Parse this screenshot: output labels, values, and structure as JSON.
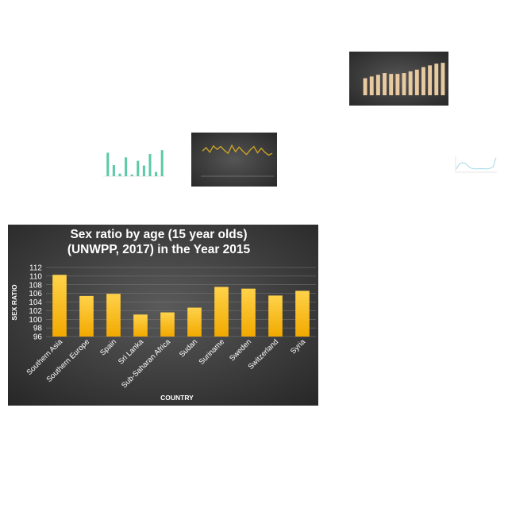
{
  "colors": {
    "dark_bg_center": "#555555",
    "dark_bg_edge": "#262626",
    "bar_gold_top": "#FFD24A",
    "bar_gold_bottom": "#F2A900",
    "tan_bar": "#E8C9A0",
    "teal_bar": "#5CC9A7",
    "olive_line": "#C9A227",
    "light_line": "#9ED8E6"
  },
  "chart_data": [
    {
      "type": "bar",
      "title": "Sex ratio by age (15 year olds) (UNWPP, 2017) in the Year 2015",
      "title_lines": [
        "Sex ratio by age (15 year olds)",
        "(UNWPP, 2017) in the Year 2015"
      ],
      "xlabel": "COUNTRY",
      "ylabel": "SEX RATIO",
      "categories": [
        "Southern Asia",
        "Southern Europe",
        "Spain",
        "Sri Lanka",
        "Sub-Saharan Africa",
        "Sudan",
        "Suriname",
        "Sweden",
        "Switzerland",
        "Syria"
      ],
      "values": [
        110.3,
        105.4,
        105.9,
        101.1,
        101.6,
        102.7,
        107.5,
        107.1,
        105.5,
        106.6
      ],
      "ylim": [
        96,
        112
      ],
      "yticks": [
        96,
        98,
        100,
        102,
        104,
        106,
        108,
        110,
        112
      ],
      "grid": true
    },
    {
      "type": "bar",
      "values": [
        2.0,
        2.2,
        2.4,
        2.6,
        2.5,
        2.5,
        2.6,
        2.8,
        3.0,
        3.3,
        3.5,
        3.7,
        3.8
      ]
    },
    {
      "type": "bar",
      "values": [
        5.5,
        2.6,
        0.6,
        4.4,
        0.4,
        3.6,
        2.5,
        5.2,
        1.0,
        6.1
      ]
    },
    {
      "type": "line",
      "values": [
        6.2,
        6.8,
        6.0,
        7.1,
        6.5,
        7.0,
        6.3,
        5.8,
        7.2,
        6.1,
        6.9,
        6.2,
        5.6,
        6.4,
        7.0,
        5.9,
        6.7,
        6.0,
        5.5,
        5.8
      ]
    },
    {
      "type": "line",
      "values": [
        1.0,
        3.0,
        3.5,
        3.2,
        2.0,
        1.2,
        1.0,
        1.0,
        1.1,
        1.0,
        1.0,
        1.2,
        1.8,
        5.5
      ]
    }
  ]
}
